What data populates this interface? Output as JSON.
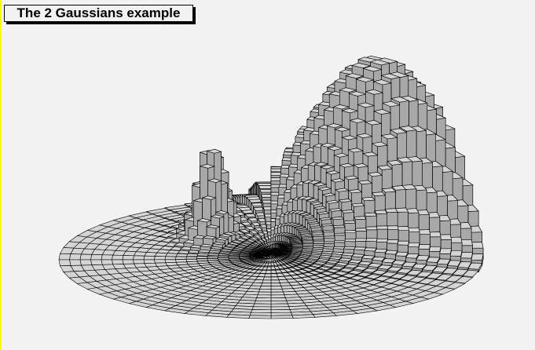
{
  "chart_data": {
    "type": "lego-polar",
    "title": "The 2 Gaussians example"
  },
  "colors": {
    "background": "#f2f2f2",
    "bar_top": "#d4d4d4",
    "bar_side": "#a8a8a8",
    "outline": "#000000",
    "canvas_edge": "#ffff00"
  }
}
